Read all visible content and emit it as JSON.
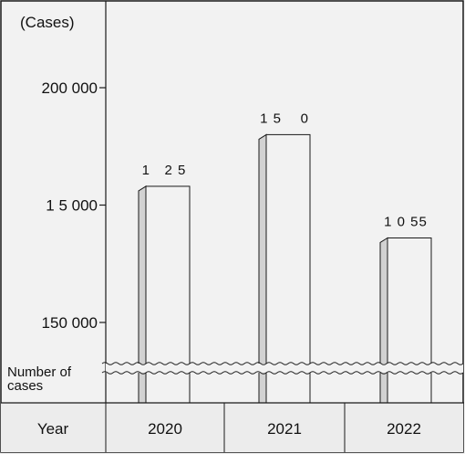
{
  "chart_data": {
    "type": "bar",
    "title": "",
    "xlabel": "Year",
    "ylabel": "(Cases)",
    "y_break_label": "Number of cases",
    "y_break_label_lines": [
      "Number of",
      "cases"
    ],
    "categories": [
      "2020",
      "2021",
      "2022"
    ],
    "values": [
      179000,
      190000,
      168000
    ],
    "data_labels": [
      "1   2 5",
      "1 5    0",
      "1 0 55"
    ],
    "y_ticks": [
      {
        "label": "200 000",
        "value": 200000
      },
      {
        "label": "1  5 000",
        "value": 175000
      },
      {
        "label": "150 000",
        "value": 150000
      }
    ],
    "ylim": [
      150000,
      200000
    ],
    "axis_broken_below_min": true,
    "grid": false,
    "legend": "none"
  },
  "colors": {
    "background": "#f2f2f2",
    "bar_face": "#f2f2f2",
    "bar_side": "#d2d2d2",
    "line": "#1a1a1a",
    "axis_row_bg": "#ececec"
  }
}
